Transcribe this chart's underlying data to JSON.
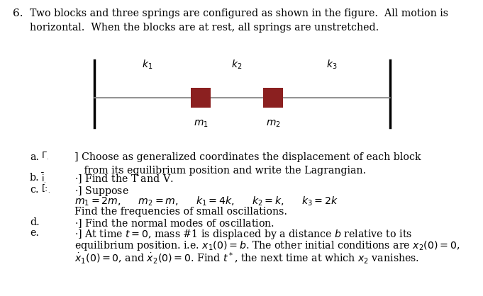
{
  "problem_number": "6.",
  "problem_text": "Two blocks and three springs are configured as shown in the figure. All motion is\nhorizontal. When the blocks are at rest, all springs are unstretched.",
  "spring_labels": [
    "k_1",
    "k_2",
    "k_3"
  ],
  "mass_labels": [
    "m_1",
    "m_2"
  ],
  "block_color": "#8B2020",
  "wall_color": "#000000",
  "spring_color": "#888888",
  "bg_color": "#FFFFFF",
  "diagram_box_color": "#CCCCCC",
  "parts": [
    [
      "a.",
      "[\\u203e .     ] Choose as generalized coordinates the displacement of each block\n    from its equilibrium position and write the Lagrangian."
    ],
    [
      "b.",
      "\\u203e .     :] Find the T and V."
    ],
    [
      "c.",
      "[: .     :] Suppose\n        $m_1 = 2m,$     $m_2 = m,$     $k_1 = 4k,$     $k_2 = k,$     $k_3 = 2k$\n    Find the frequencies of small oscillations."
    ],
    [
      "d.",
      ".  .   .:] Find the normal modes of oscillation."
    ],
    [
      "e.",
      "[: .  ...;] At time $t = 0$, mass #1 is displaced by a distance $b$ relative to its\n    equilibrium position. i.e. $x_1(0) = b$. The other initial conditions are $x_2(0) = 0$,\n    $\\dot{x}_1(0) = 0$, and $\\dot{x}_2(0) = 0$. Find $t^*$, the next time at which $x_2$ vanishes."
    ]
  ]
}
